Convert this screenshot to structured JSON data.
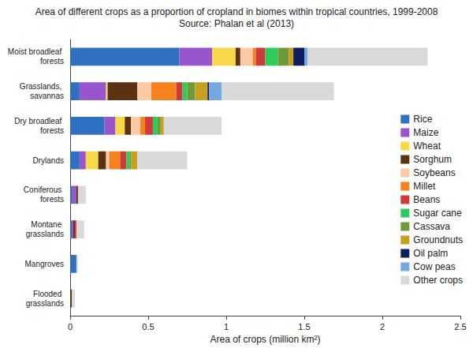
{
  "chart_data": {
    "type": "bar",
    "title": "Area of different crops as a proportion of cropland in biomes within tropical countries, 1999-2008",
    "subtitle": "Source: Phalan et al (2013)",
    "xlabel": "Area of crops (million km²)",
    "orientation": "horizontal",
    "stacked": true,
    "legend": "right",
    "grid": false,
    "categories": [
      "Moist broadleaf forests",
      "Grasslands, savannas",
      "Dry broadleaf forests",
      "Drylands",
      "Coniferous forests",
      "Montane grasslands",
      "Mangroves",
      "Flooded grasslands"
    ],
    "xlim": [
      0,
      2.5
    ],
    "xticks": [
      0,
      0.5,
      1,
      1.5,
      2,
      2.5
    ],
    "series": [
      {
        "name": "Rice",
        "color": "#3070c0",
        "values": [
          0.7,
          0.06,
          0.22,
          0.06,
          0.01,
          0.01,
          0.04,
          0.0
        ]
      },
      {
        "name": "Maize",
        "color": "#9955cc",
        "values": [
          0.21,
          0.17,
          0.07,
          0.04,
          0.03,
          0.01,
          0.0,
          0.0
        ]
      },
      {
        "name": "Wheat",
        "color": "#f8d848",
        "values": [
          0.15,
          0.01,
          0.06,
          0.08,
          0.0,
          0.0,
          0.0,
          0.0
        ]
      },
      {
        "name": "Sorghum",
        "color": "#5c3311",
        "values": [
          0.03,
          0.19,
          0.04,
          0.05,
          0.01,
          0.01,
          0.0,
          0.01
        ]
      },
      {
        "name": "Soybeans",
        "color": "#fbc9a3",
        "values": [
          0.08,
          0.09,
          0.06,
          0.02,
          0.0,
          0.0,
          0.0,
          0.0
        ]
      },
      {
        "name": "Millet",
        "color": "#f5821f",
        "values": [
          0.02,
          0.16,
          0.03,
          0.07,
          0.0,
          0.0,
          0.0,
          0.0
        ]
      },
      {
        "name": "Beans",
        "color": "#cf3a3a",
        "values": [
          0.06,
          0.04,
          0.05,
          0.04,
          0.0,
          0.01,
          0.0,
          0.0
        ]
      },
      {
        "name": "Sugar cane",
        "color": "#2dcc5c",
        "values": [
          0.08,
          0.03,
          0.03,
          0.02,
          0.0,
          0.0,
          0.0,
          0.0
        ]
      },
      {
        "name": "Cassava",
        "color": "#6d9b3b",
        "values": [
          0.07,
          0.05,
          0.02,
          0.01,
          0.0,
          0.0,
          0.0,
          0.0
        ]
      },
      {
        "name": "Groundnuts",
        "color": "#c8a020",
        "values": [
          0.03,
          0.08,
          0.02,
          0.04,
          0.0,
          0.0,
          0.0,
          0.0
        ]
      },
      {
        "name": "Oil palm",
        "color": "#0d1f5e",
        "values": [
          0.07,
          0.01,
          0.0,
          0.0,
          0.0,
          0.0,
          0.0,
          0.0
        ]
      },
      {
        "name": "Cow peas",
        "color": "#74a8e0",
        "values": [
          0.02,
          0.08,
          0.0,
          0.0,
          0.0,
          0.0,
          0.0,
          0.0
        ]
      },
      {
        "name": "Other crops",
        "color": "#d9d9d9",
        "values": [
          0.77,
          0.72,
          0.37,
          0.32,
          0.05,
          0.05,
          0.01,
          0.02
        ]
      }
    ]
  }
}
